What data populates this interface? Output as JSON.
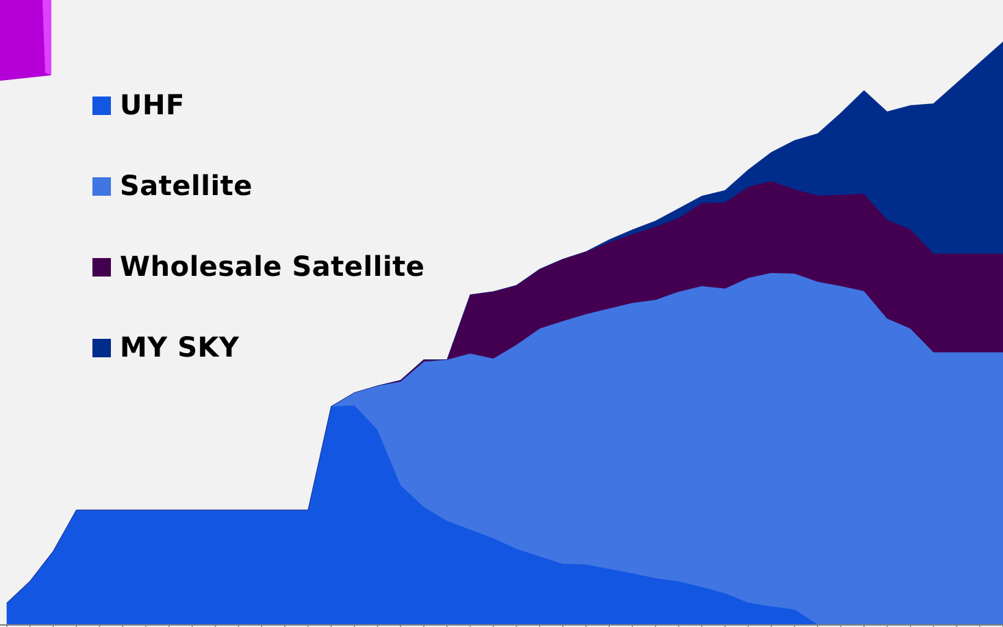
{
  "colors": {
    "background": "#f2f2f2",
    "axis": "#808080",
    "corner_decoration": "#b400d6"
  },
  "legend": {
    "items": [
      {
        "label": "UHF",
        "color": "#1356e1"
      },
      {
        "label": "Satellite",
        "color": "#4176e2"
      },
      {
        "label": "Wholesale Satellite",
        "color": "#440050"
      },
      {
        "label": "MY SKY",
        "color": "#002c8b"
      }
    ]
  },
  "chart_data": {
    "type": "area",
    "stacked": true,
    "title": "",
    "xlabel": "",
    "ylabel": "",
    "x_tick_count": 44,
    "ylim": [
      0,
      100
    ],
    "grid": false,
    "legend_position": "top-left",
    "series": [
      {
        "name": "UHF",
        "color": "#1356e1",
        "values": [
          3.4,
          6.9,
          11.7,
          18.3,
          18.3,
          18.3,
          18.3,
          18.3,
          18.3,
          18.3,
          18.3,
          18.3,
          18.3,
          18.3,
          34.9,
          35.1,
          31.2,
          22.3,
          18.8,
          16.6,
          15.2,
          13.8,
          12.1,
          10.9,
          9.7,
          9.6,
          8.9,
          8.2,
          7.4,
          6.9,
          6.0,
          5.0,
          3.5,
          2.9,
          2.4,
          0,
          0,
          0,
          0,
          0,
          0,
          0,
          0,
          0
        ]
      },
      {
        "name": "Satellite",
        "color": "#4176e2",
        "values": [
          0,
          0,
          0,
          0,
          0,
          0,
          0,
          0,
          0,
          0,
          0,
          0,
          0,
          0,
          0,
          2.0,
          7.0,
          16.6,
          23.3,
          25.8,
          28.2,
          28.8,
          32.7,
          36.5,
          38.9,
          40.1,
          41.7,
          43.3,
          44.6,
          46.4,
          48.2,
          48.8,
          52.0,
          53.4,
          53.8,
          54.9,
          54.2,
          53.4,
          49.0,
          47.4,
          43.6,
          43.6,
          43.6,
          43.6
        ]
      },
      {
        "name": "Wholesale Satellite",
        "color": "#440050",
        "values": [
          0,
          0,
          0,
          0,
          0,
          0,
          0,
          0,
          0,
          0,
          0,
          0,
          0,
          0,
          0,
          0,
          0,
          0.2,
          0.3,
          0,
          9.4,
          10.7,
          9.5,
          9.5,
          9.9,
          10.0,
          10.6,
          11.0,
          11.7,
          11.8,
          13.3,
          13.8,
          14.6,
          14.7,
          13.5,
          13.8,
          14.6,
          15.6,
          15.8,
          15.9,
          15.8,
          15.8,
          15.8,
          15.8
        ]
      },
      {
        "name": "MY SKY",
        "color": "#002c8b",
        "values": [
          0,
          0,
          0,
          0,
          0,
          0,
          0,
          0,
          0,
          0,
          0,
          0,
          0,
          0,
          0,
          0,
          0,
          0,
          0,
          0,
          0,
          0,
          0,
          0,
          0,
          0,
          0.4,
          0.7,
          0.9,
          1.5,
          1.1,
          1.9,
          2.7,
          4.6,
          7.8,
          9.9,
          13.1,
          16.5,
          17.3,
          19.8,
          24.0,
          27.3,
          30.6,
          33.9
        ]
      }
    ]
  }
}
